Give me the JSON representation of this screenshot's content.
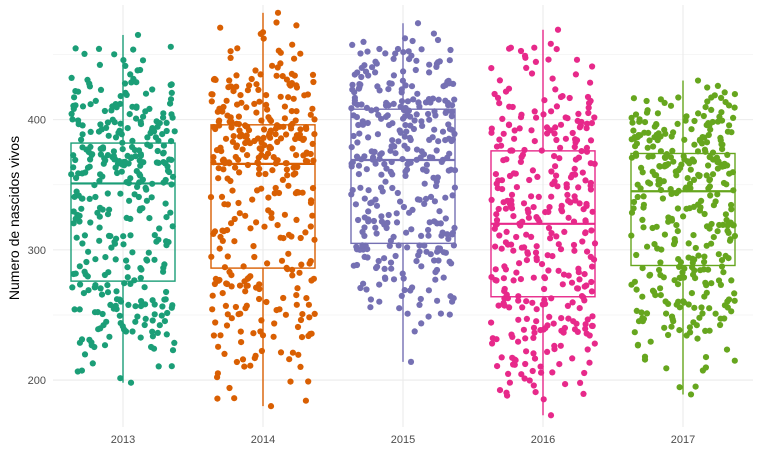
{
  "chart_data": {
    "type": "scatter",
    "subtype": "boxplot-with-jitter",
    "title": "",
    "xlabel": "",
    "ylabel": "Numero de nascidos vivos",
    "categories": [
      "2013",
      "2014",
      "2015",
      "2016",
      "2017"
    ],
    "ylim": [
      164,
      488
    ],
    "y_ticks": [
      200,
      300,
      400
    ],
    "grid": true,
    "legend": "none",
    "colors": [
      "#1b9e77",
      "#d95f02",
      "#7570b3",
      "#e7298a",
      "#66a61e"
    ],
    "series": [
      {
        "category": "2013",
        "whisker_low": 198,
        "q1": 276,
        "median": 351,
        "q3": 382,
        "whisker_high": 465,
        "point_range": [
          198,
          465
        ]
      },
      {
        "category": "2014",
        "whisker_low": 180,
        "q1": 286,
        "median": 366,
        "q3": 396,
        "whisker_high": 482,
        "point_range": [
          180,
          482
        ]
      },
      {
        "category": "2015",
        "whisker_low": 214,
        "q1": 305,
        "median": 369,
        "q3": 408,
        "whisker_high": 474,
        "point_range": [
          214,
          474
        ]
      },
      {
        "category": "2016",
        "whisker_low": 173,
        "q1": 264,
        "median": 320,
        "q3": 376,
        "whisker_high": 469,
        "point_range": [
          173,
          469
        ]
      },
      {
        "category": "2017",
        "whisker_low": 189,
        "q1": 288,
        "median": 345,
        "q3": 374,
        "whisker_high": 430,
        "point_range": [
          189,
          430
        ]
      }
    ]
  }
}
